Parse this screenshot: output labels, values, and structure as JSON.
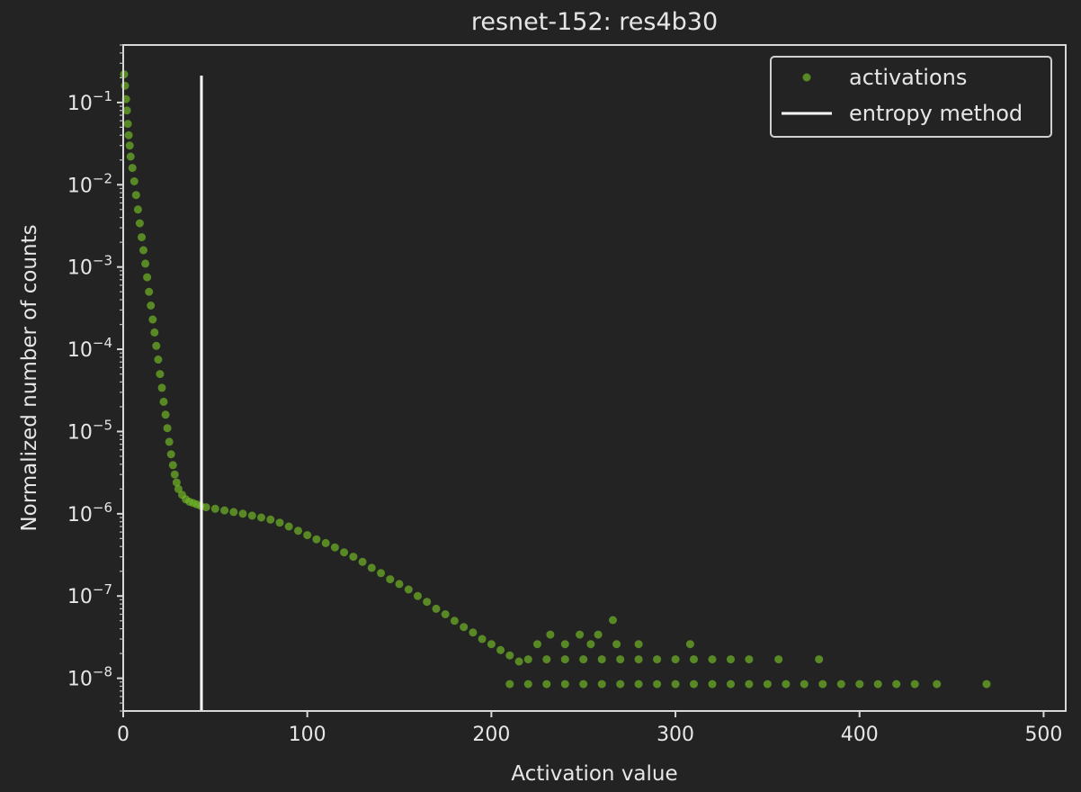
{
  "chart_data": {
    "type": "scatter",
    "title": "resnet-152: res4b30",
    "xlabel": "Activation value",
    "ylabel": "Normalized number of counts",
    "xscale": "linear",
    "yscale": "log",
    "xlim": [
      0,
      512
    ],
    "ylim": [
      4e-09,
      0.5
    ],
    "xticks": [
      0,
      100,
      200,
      300,
      400,
      500
    ],
    "xtick_labels": [
      "0",
      "100",
      "200",
      "300",
      "400",
      "500"
    ],
    "yticks_exponent": [
      -1,
      -2,
      -3,
      -4,
      -5,
      -6,
      -7,
      -8
    ],
    "ytick_base": "10",
    "grid": false,
    "legend_position": "top-right",
    "series": [
      {
        "name": "activations",
        "kind": "markers",
        "color": "#6fb526",
        "points": [
          [
            0.5,
            0.22
          ],
          [
            1,
            0.16
          ],
          [
            1.5,
            0.11
          ],
          [
            2,
            0.08
          ],
          [
            2.5,
            0.055
          ],
          [
            3,
            0.04
          ],
          [
            3.5,
            0.03
          ],
          [
            4,
            0.022
          ],
          [
            5,
            0.016
          ],
          [
            6,
            0.011
          ],
          [
            7,
            0.0075
          ],
          [
            8,
            0.005
          ],
          [
            9,
            0.0034
          ],
          [
            10,
            0.0023
          ],
          [
            11,
            0.0016
          ],
          [
            12,
            0.0011
          ],
          [
            13,
            0.00075
          ],
          [
            14,
            0.0005
          ],
          [
            15,
            0.00034
          ],
          [
            16,
            0.00023
          ],
          [
            17,
            0.00016
          ],
          [
            18,
            0.00011
          ],
          [
            19,
            7.5e-05
          ],
          [
            20,
            5e-05
          ],
          [
            21,
            3.4e-05
          ],
          [
            22,
            2.3e-05
          ],
          [
            23,
            1.6e-05
          ],
          [
            24,
            1.1e-05
          ],
          [
            25,
            7.5e-06
          ],
          [
            26,
            5.3e-06
          ],
          [
            27,
            3.9e-06
          ],
          [
            28,
            3e-06
          ],
          [
            29,
            2.4e-06
          ],
          [
            30,
            2e-06
          ],
          [
            32,
            1.7e-06
          ],
          [
            34,
            1.5e-06
          ],
          [
            36,
            1.4e-06
          ],
          [
            38,
            1.35e-06
          ],
          [
            40,
            1.3e-06
          ],
          [
            42,
            1.25e-06
          ],
          [
            45,
            1.2e-06
          ],
          [
            50,
            1.15e-06
          ],
          [
            55,
            1.1e-06
          ],
          [
            60,
            1.05e-06
          ],
          [
            65,
            1e-06
          ],
          [
            70,
            9.5e-07
          ],
          [
            75,
            9e-07
          ],
          [
            80,
            8.5e-07
          ],
          [
            85,
            7.8e-07
          ],
          [
            90,
            7e-07
          ],
          [
            95,
            6.2e-07
          ],
          [
            100,
            5.5e-07
          ],
          [
            105,
            4.9e-07
          ],
          [
            110,
            4.4e-07
          ],
          [
            115,
            3.9e-07
          ],
          [
            120,
            3.4e-07
          ],
          [
            125,
            3e-07
          ],
          [
            130,
            2.6e-07
          ],
          [
            135,
            2.2e-07
          ],
          [
            140,
            1.9e-07
          ],
          [
            145,
            1.6e-07
          ],
          [
            150,
            1.4e-07
          ],
          [
            155,
            1.2e-07
          ],
          [
            160,
            1e-07
          ],
          [
            165,
            8.5e-08
          ],
          [
            170,
            7e-08
          ],
          [
            175,
            6e-08
          ],
          [
            180,
            5e-08
          ],
          [
            185,
            4.2e-08
          ],
          [
            190,
            3.6e-08
          ],
          [
            195,
            3e-08
          ],
          [
            200,
            2.6e-08
          ],
          [
            205,
            2.2e-08
          ],
          [
            210,
            1.9e-08
          ],
          [
            215,
            1.6e-08
          ],
          [
            220,
            1.7e-08
          ],
          [
            230,
            1.7e-08
          ],
          [
            240,
            1.7e-08
          ],
          [
            250,
            1.7e-08
          ],
          [
            260,
            1.7e-08
          ],
          [
            270,
            1.7e-08
          ],
          [
            280,
            1.7e-08
          ],
          [
            290,
            1.7e-08
          ],
          [
            300,
            1.7e-08
          ],
          [
            310,
            1.7e-08
          ],
          [
            320,
            1.7e-08
          ],
          [
            330,
            1.7e-08
          ],
          [
            340,
            1.7e-08
          ],
          [
            210,
            8.5e-09
          ],
          [
            220,
            8.5e-09
          ],
          [
            230,
            8.5e-09
          ],
          [
            240,
            8.5e-09
          ],
          [
            250,
            8.5e-09
          ],
          [
            260,
            8.5e-09
          ],
          [
            270,
            8.5e-09
          ],
          [
            280,
            8.5e-09
          ],
          [
            290,
            8.5e-09
          ],
          [
            300,
            8.5e-09
          ],
          [
            310,
            8.5e-09
          ],
          [
            320,
            8.5e-09
          ],
          [
            330,
            8.5e-09
          ],
          [
            340,
            8.5e-09
          ],
          [
            350,
            8.5e-09
          ],
          [
            360,
            8.5e-09
          ],
          [
            370,
            8.5e-09
          ],
          [
            380,
            8.5e-09
          ],
          [
            390,
            8.5e-09
          ],
          [
            400,
            8.5e-09
          ],
          [
            410,
            8.5e-09
          ],
          [
            420,
            8.5e-09
          ],
          [
            430,
            8.5e-09
          ],
          [
            442,
            8.5e-09
          ],
          [
            469,
            8.5e-09
          ],
          [
            225,
            2.6e-08
          ],
          [
            232,
            3.4e-08
          ],
          [
            240,
            2.6e-08
          ],
          [
            248,
            3.4e-08
          ],
          [
            254,
            2.6e-08
          ],
          [
            258,
            3.4e-08
          ],
          [
            266,
            5.1e-08
          ],
          [
            268,
            2.6e-08
          ],
          [
            280,
            2.6e-08
          ],
          [
            308,
            2.6e-08
          ],
          [
            356,
            1.7e-08
          ],
          [
            378,
            1.7e-08
          ]
        ]
      },
      {
        "name": "entropy method",
        "kind": "vertical-line",
        "color": "#ffffff",
        "x": 42.5
      }
    ]
  }
}
